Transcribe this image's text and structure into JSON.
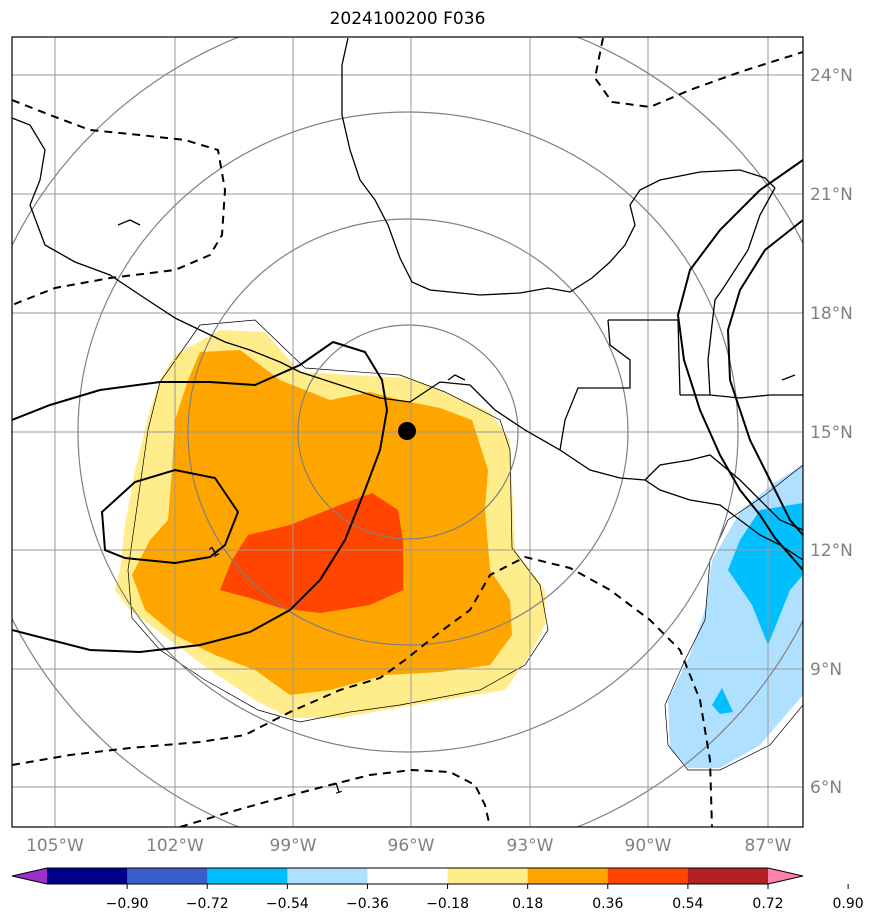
{
  "title": "2024100200 F036",
  "lon_labels": [
    "105°W",
    "102°W",
    "99°W",
    "96°W",
    "93°W",
    "90°W",
    "87°W"
  ],
  "lat_labels": [
    "24°N",
    "21°N",
    "18°N",
    "15°N",
    "12°N",
    "9°N",
    "6°N"
  ],
  "colorbar": {
    "colors": [
      "#9932cc",
      "#00008b",
      "#3a5fcd",
      "#00bfff",
      "#b0e0ff",
      "#ffffff",
      "#ffec8b",
      "#ffa500",
      "#ff4500",
      "#b22222",
      "#ff82ab"
    ],
    "ticks": [
      "−0.90",
      "−0.72",
      "−0.54",
      "−0.36",
      "−0.18",
      "0.18",
      "0.36",
      "0.54",
      "0.72",
      "0.90"
    ]
  },
  "contour_labels": [
    "1",
    "1"
  ],
  "center": {
    "lon": -96,
    "lat": 15
  }
}
